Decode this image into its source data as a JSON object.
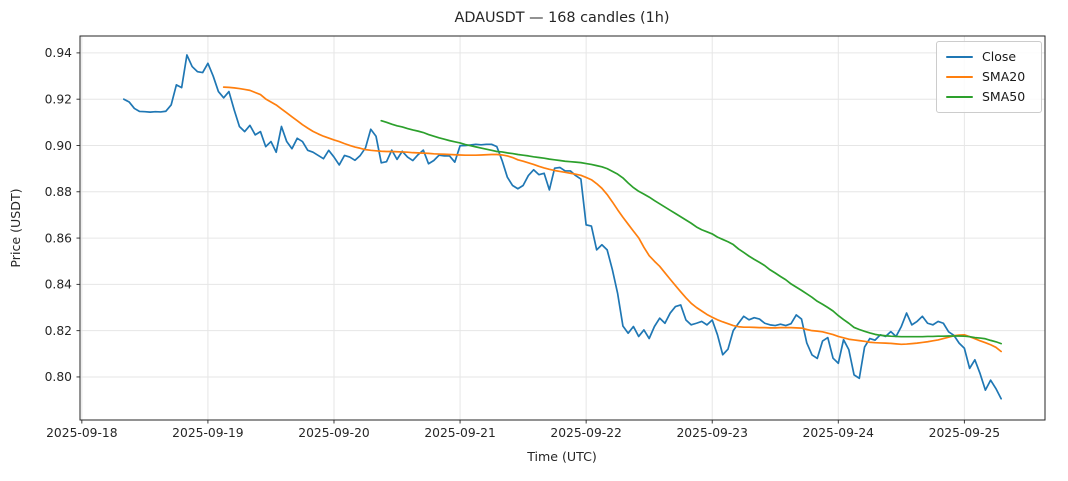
{
  "window": {
    "title": "ADAUSDT — 168 candles (1h)"
  },
  "chart_data": {
    "type": "line",
    "title": "ADAUSDT — 168 candles (1h)",
    "xlabel": "Time (UTC)",
    "ylabel": "Price (USDT)",
    "x_unit": "hours since 2025-09-18 00:00",
    "xlim": [
      -0.35,
      183.35
    ],
    "ylim": [
      0.7814,
      0.9473
    ],
    "grid": true,
    "grid_color": "#e6e6e6",
    "spine_color": "#262626",
    "legend_position": "upper right",
    "x_ticks": [
      {
        "t": 0,
        "label": "2025-09-18"
      },
      {
        "t": 24,
        "label": "2025-09-19"
      },
      {
        "t": 48,
        "label": "2025-09-20"
      },
      {
        "t": 72,
        "label": "2025-09-21"
      },
      {
        "t": 96,
        "label": "2025-09-22"
      },
      {
        "t": 120,
        "label": "2025-09-23"
      },
      {
        "t": 144,
        "label": "2025-09-24"
      },
      {
        "t": 168,
        "label": "2025-09-25"
      }
    ],
    "y_ticks": [
      {
        "v": 0.8,
        "label": "0.80"
      },
      {
        "v": 0.82,
        "label": "0.82"
      },
      {
        "v": 0.84,
        "label": "0.84"
      },
      {
        "v": 0.86,
        "label": "0.86"
      },
      {
        "v": 0.88,
        "label": "0.88"
      },
      {
        "v": 0.9,
        "label": "0.90"
      },
      {
        "v": 0.92,
        "label": "0.92"
      },
      {
        "v": 0.94,
        "label": "0.94"
      }
    ],
    "series": [
      {
        "name": "Close",
        "color": "#1f77b4",
        "start_hour": 8,
        "step": 1,
        "values": [
          0.92,
          0.9188,
          0.916,
          0.9147,
          0.9146,
          0.9144,
          0.9146,
          0.9145,
          0.9148,
          0.9175,
          0.9262,
          0.925,
          0.9391,
          0.9341,
          0.9319,
          0.9315,
          0.9355,
          0.93,
          0.9233,
          0.9206,
          0.9233,
          0.9154,
          0.9082,
          0.906,
          0.9087,
          0.9046,
          0.906,
          0.8995,
          0.9017,
          0.8971,
          0.9082,
          0.9017,
          0.8986,
          0.9031,
          0.9017,
          0.8979,
          0.8971,
          0.8957,
          0.8943,
          0.8979,
          0.895,
          0.8916,
          0.8957,
          0.895,
          0.8936,
          0.8957,
          0.899,
          0.907,
          0.904,
          0.8925,
          0.893,
          0.898,
          0.894,
          0.8975,
          0.895,
          0.8935,
          0.896,
          0.898,
          0.8921,
          0.8935,
          0.8958,
          0.8955,
          0.8955,
          0.8928,
          0.8999,
          0.9,
          0.9002,
          0.9005,
          0.9003,
          0.9005,
          0.9005,
          0.8995,
          0.8935,
          0.8863,
          0.8827,
          0.8813,
          0.8827,
          0.887,
          0.8895,
          0.8874,
          0.888,
          0.8808,
          0.8902,
          0.8905,
          0.889,
          0.889,
          0.887,
          0.8855,
          0.8657,
          0.8652,
          0.8549,
          0.8571,
          0.8549,
          0.8463,
          0.836,
          0.822,
          0.8189,
          0.8218,
          0.8175,
          0.8203,
          0.8166,
          0.8218,
          0.8254,
          0.8232,
          0.8276,
          0.8304,
          0.8311,
          0.8246,
          0.8225,
          0.8232,
          0.824,
          0.8225,
          0.8246,
          0.8182,
          0.8096,
          0.812,
          0.82,
          0.8232,
          0.8262,
          0.8247,
          0.8256,
          0.825,
          0.8232,
          0.8225,
          0.8222,
          0.8228,
          0.8222,
          0.823,
          0.8268,
          0.825,
          0.8147,
          0.8095,
          0.808,
          0.8155,
          0.817,
          0.8081,
          0.8059,
          0.8161,
          0.8118,
          0.8009,
          0.7994,
          0.8129,
          0.8166,
          0.8159,
          0.8182,
          0.8175,
          0.8196,
          0.8175,
          0.8218,
          0.8276,
          0.8225,
          0.824,
          0.8262,
          0.8232,
          0.8225,
          0.824,
          0.8232,
          0.8195,
          0.818,
          0.8146,
          0.8124,
          0.8037,
          0.8074,
          0.8014,
          0.7943,
          0.7986,
          0.795,
          0.7906
        ]
      },
      {
        "name": "SMA20",
        "color": "#ff7f0e",
        "start_hour": 27,
        "step": 1,
        "values": [
          0.9252,
          0.9251,
          0.9249,
          0.9246,
          0.9242,
          0.9238,
          0.9229,
          0.922,
          0.9201,
          0.9188,
          0.9175,
          0.9158,
          0.9141,
          0.9124,
          0.9107,
          0.909,
          0.9075,
          0.9061,
          0.905,
          0.904,
          0.9032,
          0.9024,
          0.9017,
          0.9008,
          0.9,
          0.8993,
          0.8988,
          0.8982,
          0.8979,
          0.8977,
          0.8975,
          0.8974,
          0.8974,
          0.8973,
          0.8972,
          0.8971,
          0.8969,
          0.8968,
          0.8967,
          0.8966,
          0.8964,
          0.8963,
          0.8962,
          0.8961,
          0.896,
          0.8959,
          0.8958,
          0.8958,
          0.8958,
          0.8959,
          0.896,
          0.8961,
          0.8961,
          0.8959,
          0.8955,
          0.8948,
          0.8938,
          0.8932,
          0.8925,
          0.8918,
          0.891,
          0.8903,
          0.8897,
          0.8892,
          0.8888,
          0.8884,
          0.888,
          0.8876,
          0.8871,
          0.8862,
          0.8852,
          0.8835,
          0.8815,
          0.8788,
          0.8756,
          0.8722,
          0.869,
          0.866,
          0.863,
          0.8601,
          0.856,
          0.8524,
          0.85,
          0.8478,
          0.845,
          0.8422,
          0.8395,
          0.8368,
          0.8342,
          0.8318,
          0.83,
          0.8285,
          0.827,
          0.8258,
          0.8247,
          0.8238,
          0.823,
          0.8222,
          0.8217,
          0.8215,
          0.8215,
          0.8214,
          0.8213,
          0.8213,
          0.8212,
          0.8212,
          0.8213,
          0.8213,
          0.8213,
          0.8212,
          0.8211,
          0.8205,
          0.82,
          0.8198,
          0.8195,
          0.8189,
          0.8183,
          0.8175,
          0.8169,
          0.8163,
          0.816,
          0.8157,
          0.8154,
          0.815,
          0.8148,
          0.8147,
          0.8146,
          0.8145,
          0.8143,
          0.8141,
          0.8142,
          0.8144,
          0.8146,
          0.8149,
          0.8152,
          0.8156,
          0.816,
          0.8166,
          0.8172,
          0.8178,
          0.8181,
          0.8182,
          0.8174,
          0.8165,
          0.8156,
          0.8148,
          0.8139,
          0.8128,
          0.811
        ]
      },
      {
        "name": "SMA50",
        "color": "#2ca02c",
        "start_hour": 57,
        "step": 1,
        "values": [
          0.9107,
          0.91,
          0.9092,
          0.9085,
          0.908,
          0.9073,
          0.9067,
          0.9062,
          0.9056,
          0.9047,
          0.904,
          0.9033,
          0.9027,
          0.9021,
          0.9016,
          0.9011,
          0.9004,
          0.8999,
          0.8994,
          0.8989,
          0.8984,
          0.8979,
          0.8974,
          0.8972,
          0.8968,
          0.8965,
          0.8961,
          0.8958,
          0.8955,
          0.8951,
          0.8948,
          0.8945,
          0.8941,
          0.8938,
          0.8935,
          0.8932,
          0.893,
          0.8928,
          0.8926,
          0.8922,
          0.8918,
          0.8913,
          0.8908,
          0.89,
          0.8888,
          0.8876,
          0.886,
          0.8838,
          0.8818,
          0.8802,
          0.879,
          0.8777,
          0.8762,
          0.8748,
          0.8734,
          0.872,
          0.8706,
          0.8692,
          0.8678,
          0.8664,
          0.8648,
          0.8636,
          0.8627,
          0.8618,
          0.8604,
          0.8594,
          0.8584,
          0.8572,
          0.8553,
          0.8538,
          0.8522,
          0.8508,
          0.8495,
          0.8481,
          0.8463,
          0.8449,
          0.8434,
          0.842,
          0.8402,
          0.8388,
          0.8374,
          0.8359,
          0.8344,
          0.8327,
          0.8314,
          0.83,
          0.8285,
          0.8265,
          0.8248,
          0.8232,
          0.8214,
          0.8205,
          0.8197,
          0.819,
          0.8184,
          0.818,
          0.8178,
          0.8176,
          0.8175,
          0.8174,
          0.8174,
          0.8174,
          0.8174,
          0.8174,
          0.8175,
          0.8175,
          0.8176,
          0.8176,
          0.8177,
          0.8177,
          0.8177,
          0.8176,
          0.8174,
          0.817,
          0.8168,
          0.8165,
          0.8158,
          0.8152,
          0.8144
        ]
      }
    ]
  },
  "legend": {
    "items": [
      {
        "label": "Close",
        "color": "#1f77b4"
      },
      {
        "label": "SMA20",
        "color": "#ff7f0e"
      },
      {
        "label": "SMA50",
        "color": "#2ca02c"
      }
    ]
  }
}
